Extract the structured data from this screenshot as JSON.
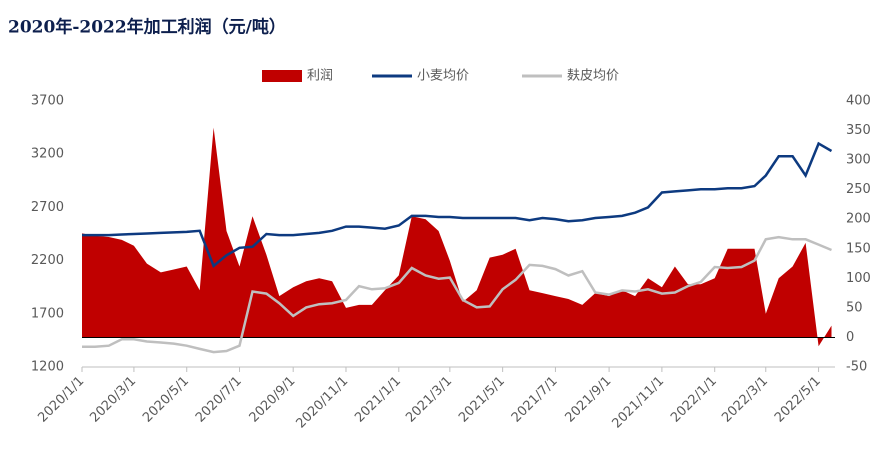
{
  "chart_data": {
    "type": "line",
    "title": "2020年-2022年加工利润（元/吨）",
    "x": [
      "2020/1/1",
      "2020/1/16",
      "2020/2/1",
      "2020/2/16",
      "2020/3/1",
      "2020/3/16",
      "2020/4/1",
      "2020/4/16",
      "2020/5/1",
      "2020/5/16",
      "2020/6/1",
      "2020/6/16",
      "2020/7/1",
      "2020/7/16",
      "2020/8/1",
      "2020/8/16",
      "2020/9/1",
      "2020/9/16",
      "2020/10/1",
      "2020/10/16",
      "2020/11/1",
      "2020/11/16",
      "2020/12/1",
      "2020/12/16",
      "2021/1/1",
      "2021/1/16",
      "2021/2/1",
      "2021/2/16",
      "2021/3/1",
      "2021/3/16",
      "2021/4/1",
      "2021/4/16",
      "2021/5/1",
      "2021/5/16",
      "2021/6/1",
      "2021/6/16",
      "2021/7/1",
      "2021/7/16",
      "2021/8/1",
      "2021/8/16",
      "2021/9/1",
      "2021/9/16",
      "2021/10/1",
      "2021/10/16",
      "2021/11/1",
      "2021/11/16",
      "2021/12/1",
      "2021/12/16",
      "2022/1/1",
      "2022/1/16",
      "2022/2/1",
      "2022/2/16",
      "2022/3/1",
      "2022/3/16",
      "2022/4/1",
      "2022/4/16",
      "2022/5/1",
      "2022/5/16"
    ],
    "series": [
      {
        "name": "利润",
        "type": "area",
        "axis": "y2",
        "color": "#c00000",
        "values": [
          176,
          172,
          170,
          165,
          155,
          125,
          110,
          115,
          120,
          80,
          355,
          180,
          120,
          205,
          140,
          70,
          85,
          95,
          100,
          95,
          50,
          55,
          55,
          80,
          105,
          205,
          200,
          180,
          130,
          60,
          80,
          135,
          140,
          150,
          80,
          75,
          70,
          65,
          55,
          75,
          70,
          80,
          70,
          100,
          85,
          120,
          90,
          90,
          100,
          150,
          150,
          150,
          40,
          100,
          120,
          160,
          -15,
          20
        ]
      },
      {
        "name": "小麦均价",
        "type": "line",
        "axis": "y",
        "color": "#0d3a80",
        "values": [
          2440,
          2440,
          2440,
          2445,
          2450,
          2455,
          2460,
          2465,
          2470,
          2480,
          2150,
          2250,
          2320,
          2330,
          2450,
          2440,
          2440,
          2450,
          2460,
          2480,
          2520,
          2520,
          2510,
          2500,
          2530,
          2620,
          2620,
          2610,
          2610,
          2600,
          2600,
          2600,
          2600,
          2600,
          2580,
          2600,
          2590,
          2570,
          2580,
          2600,
          2610,
          2620,
          2650,
          2700,
          2840,
          2850,
          2860,
          2870,
          2870,
          2880,
          2880,
          2900,
          3000,
          3180,
          3180,
          3000,
          3300,
          3230
        ]
      },
      {
        "name": "麸皮均价",
        "type": "line",
        "axis": "y",
        "color": "#bfbfbf",
        "values": [
          1390,
          1390,
          1400,
          1460,
          1460,
          1440,
          1430,
          1420,
          1400,
          1370,
          1340,
          1350,
          1400,
          1910,
          1890,
          1800,
          1680,
          1760,
          1790,
          1800,
          1830,
          1960,
          1930,
          1940,
          1990,
          2130,
          2060,
          2030,
          2040,
          1830,
          1760,
          1770,
          1930,
          2020,
          2160,
          2150,
          2120,
          2060,
          2100,
          1900,
          1880,
          1920,
          1910,
          1930,
          1890,
          1900,
          1960,
          2000,
          2140,
          2130,
          2140,
          2200,
          2400,
          2420,
          2400,
          2400,
          2350,
          2300
        ]
      }
    ],
    "xlim": [
      "2020/1/1",
      "2022/5/20"
    ],
    "xticks": [
      "2020/1/1",
      "2020/3/1",
      "2020/5/1",
      "2020/7/1",
      "2020/9/1",
      "2020/11/1",
      "2021/1/1",
      "2021/3/1",
      "2021/5/1",
      "2021/7/1",
      "2021/9/1",
      "2021/11/1",
      "2022/1/1",
      "2022/3/1",
      "2022/5/1"
    ],
    "ylim": [
      1200,
      3700
    ],
    "yticks": [
      1200,
      1700,
      2200,
      2700,
      3200,
      3700
    ],
    "y2lim": [
      -50,
      400
    ],
    "y2ticks": [
      -50,
      0,
      50,
      100,
      150,
      200,
      250,
      300,
      350,
      400
    ],
    "legend": "top"
  }
}
